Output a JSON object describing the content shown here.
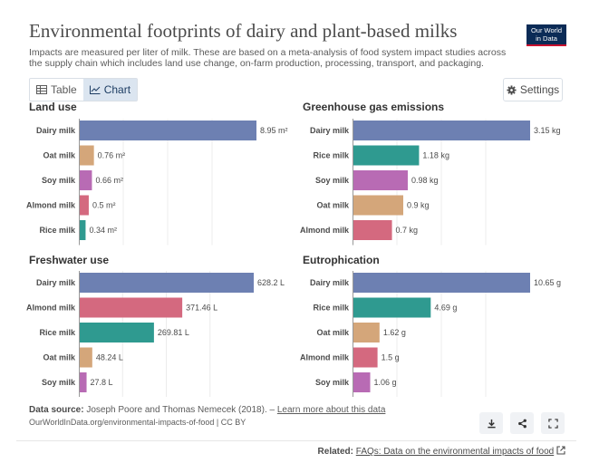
{
  "header": {
    "title": "Environmental footprints of dairy and plant-based milks",
    "subtitle": "Impacts are measured per liter of milk. These are based on a meta-analysis of food system impact studies across the supply chain which includes land use change, on-farm production, processing, transport, and packaging.",
    "logo_line1": "Our World",
    "logo_line2": "in Data"
  },
  "controls": {
    "tab_table": "Table",
    "tab_chart": "Chart",
    "settings": "Settings"
  },
  "colors": {
    "Dairy milk": "#6d80b2",
    "Oat milk": "#d4a67a",
    "Soy milk": "#b86bb4",
    "Almond milk": "#d4697f",
    "Rice milk": "#2f9a90"
  },
  "chart_data": [
    {
      "type": "bar",
      "title": "Land use",
      "categories": [
        "Dairy milk",
        "Oat milk",
        "Soy milk",
        "Almond milk",
        "Rice milk"
      ],
      "values": [
        8.95,
        0.76,
        0.66,
        0.5,
        0.34
      ],
      "labels": [
        "8.95 m²",
        "0.76 m²",
        "0.66 m²",
        "0.5 m²",
        "0.34 m²"
      ]
    },
    {
      "type": "bar",
      "title": "Greenhouse gas emissions",
      "categories": [
        "Dairy milk",
        "Rice milk",
        "Soy milk",
        "Oat milk",
        "Almond milk"
      ],
      "values": [
        3.15,
        1.18,
        0.98,
        0.9,
        0.7
      ],
      "labels": [
        "3.15 kg",
        "1.18 kg",
        "0.98 kg",
        "0.9 kg",
        "0.7 kg"
      ]
    },
    {
      "type": "bar",
      "title": "Freshwater use",
      "categories": [
        "Dairy milk",
        "Almond milk",
        "Rice milk",
        "Oat milk",
        "Soy milk"
      ],
      "values": [
        628.2,
        371.46,
        269.81,
        48.24,
        27.8
      ],
      "labels": [
        "628.2 L",
        "371.46 L",
        "269.81 L",
        "48.24 L",
        "27.8 L"
      ]
    },
    {
      "type": "bar",
      "title": "Eutrophication",
      "categories": [
        "Dairy milk",
        "Rice milk",
        "Oat milk",
        "Almond milk",
        "Soy milk"
      ],
      "values": [
        10.65,
        4.69,
        1.62,
        1.5,
        1.06
      ],
      "labels": [
        "10.65 g",
        "4.69 g",
        "1.62 g",
        "1.5 g",
        "1.06 g"
      ]
    }
  ],
  "footer": {
    "source_label": "Data source:",
    "source_text": "Joseph Poore and Thomas Nemecek (2018). –",
    "source_link": "Learn more about this data",
    "citation": "OurWorldInData.org/environmental-impacts-of-food | CC BY",
    "related_label": "Related:",
    "related_link": "FAQs: Data on the environmental impacts of food"
  }
}
